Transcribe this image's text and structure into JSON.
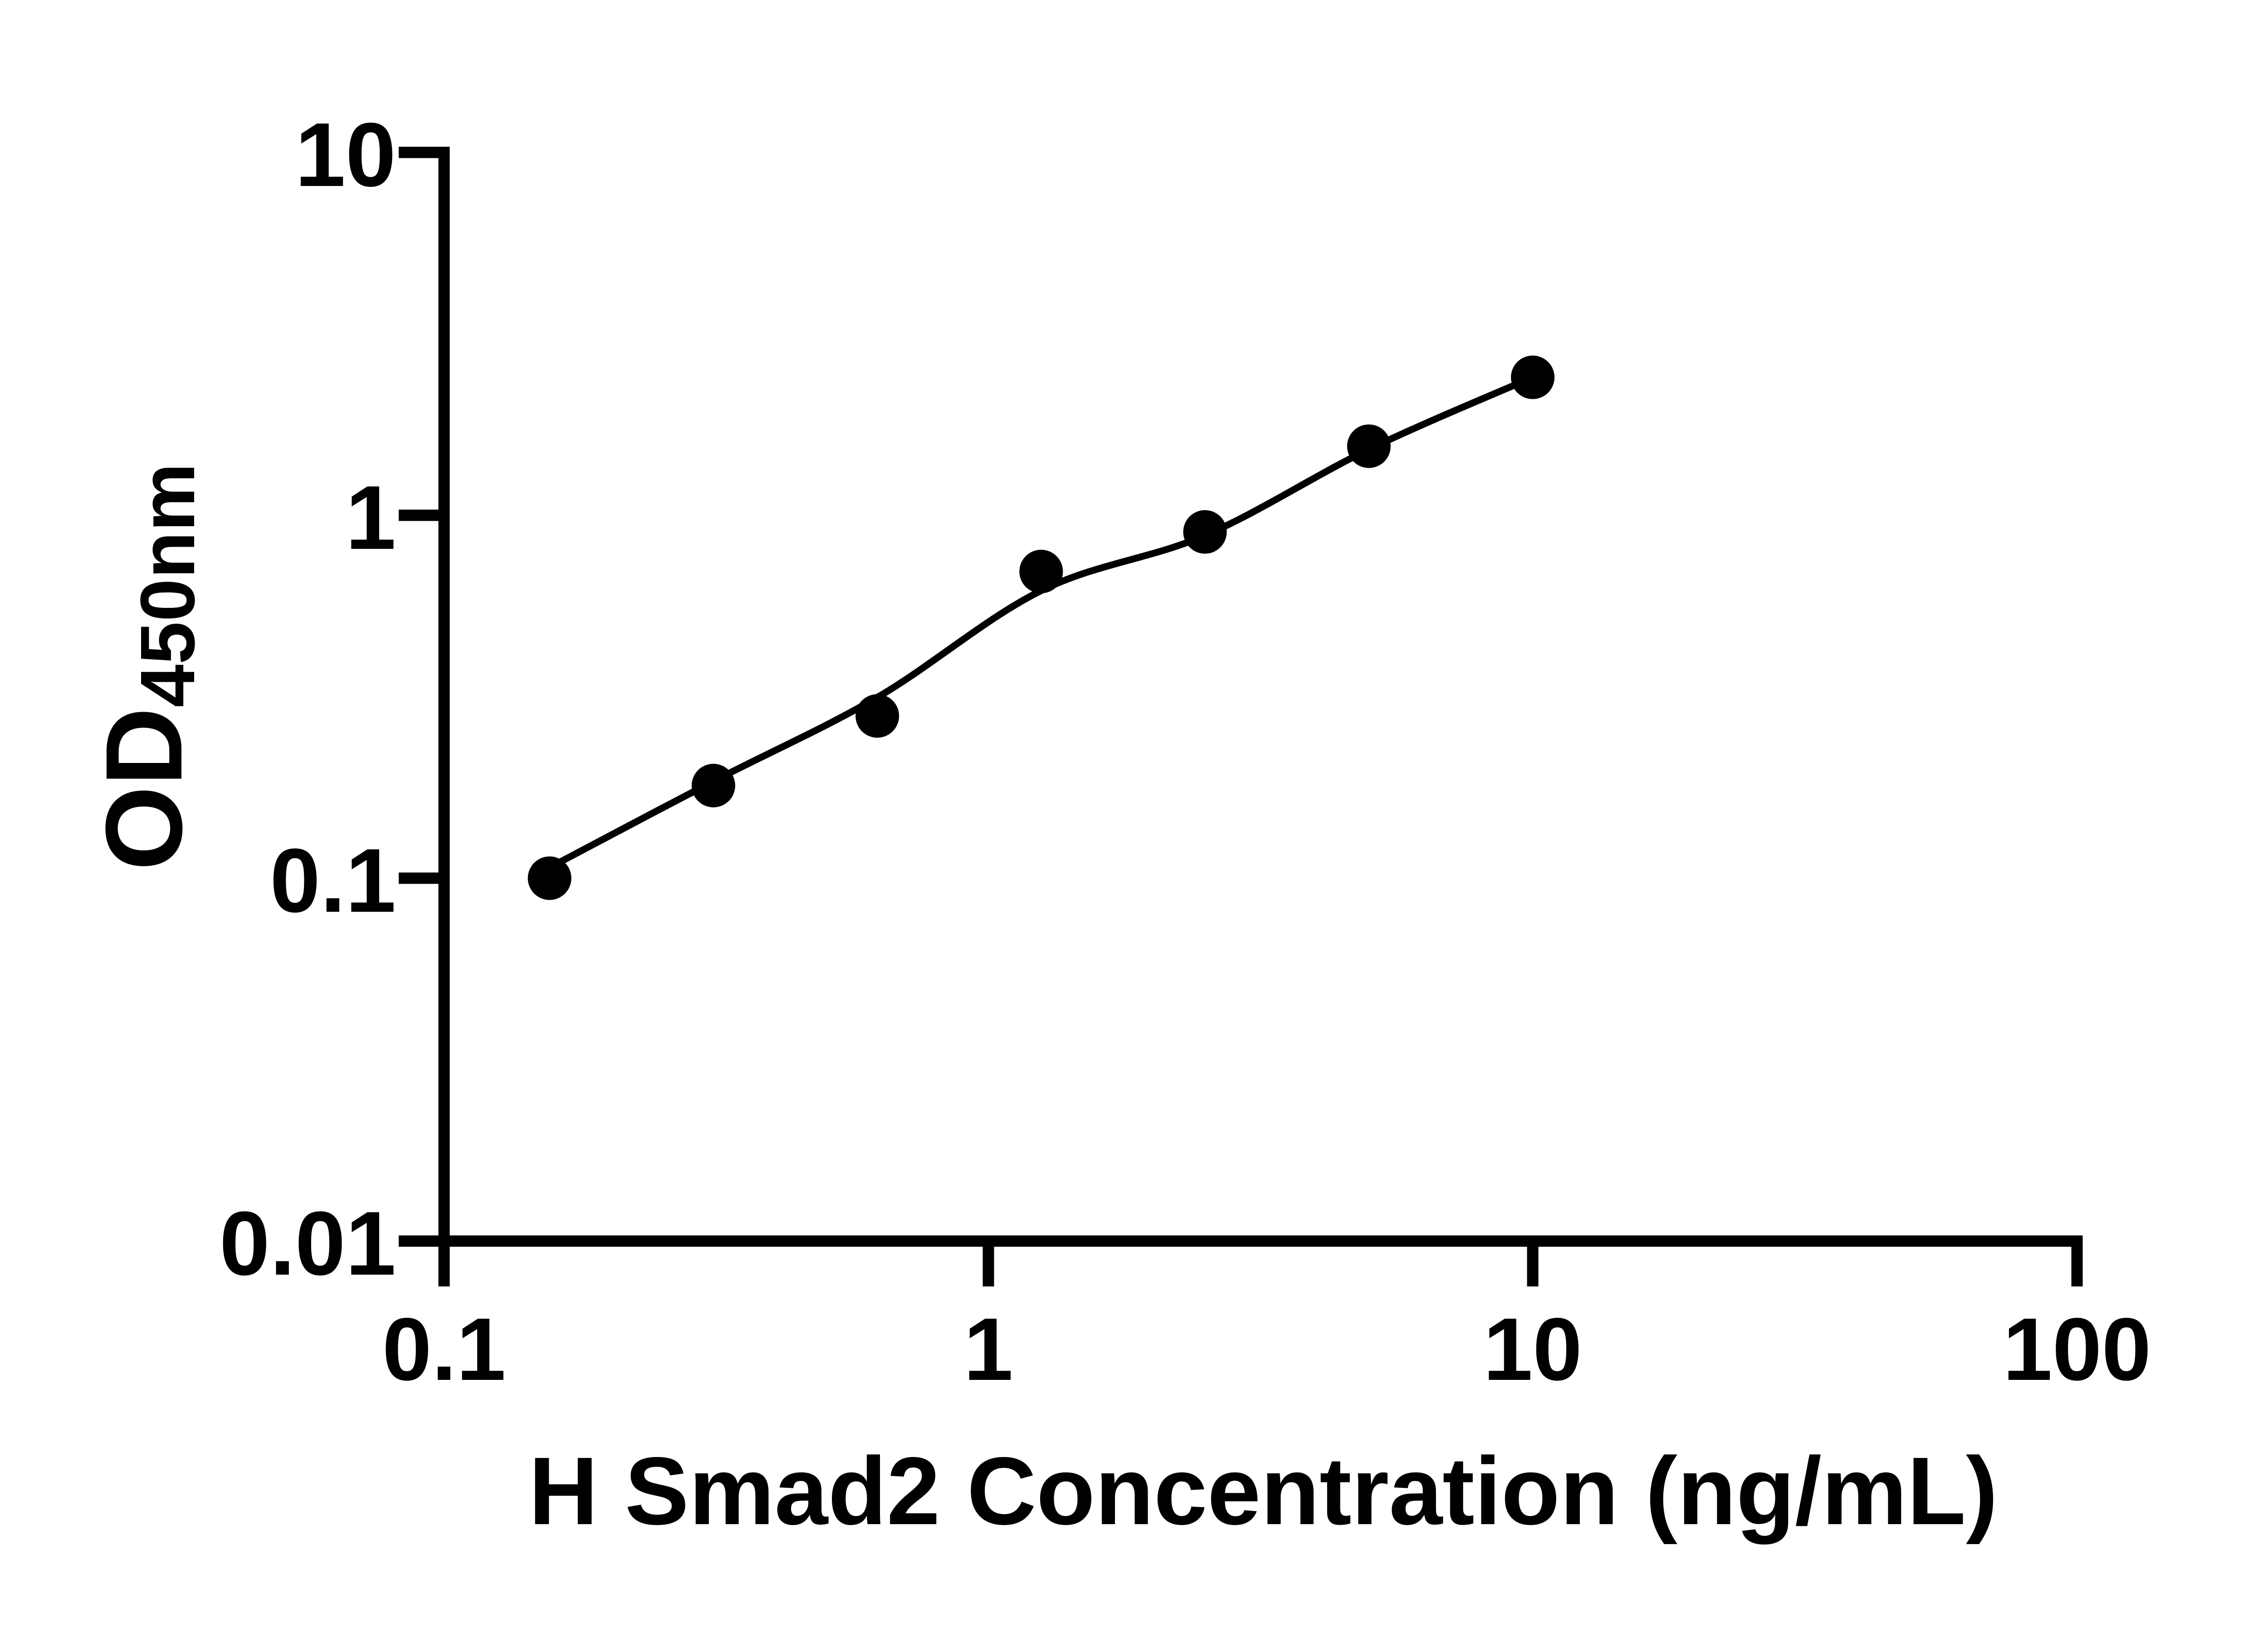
{
  "figure": {
    "background_color": "#ffffff",
    "ink_color": "#000000"
  },
  "chart_data": {
    "type": "scatter",
    "title": "",
    "xlabel": "H Smad2 Concentration (ng/mL)",
    "ylabel": {
      "main": "OD",
      "sub": "450nm"
    },
    "x_scale": "log",
    "y_scale": "log",
    "xlim": [
      0.1,
      100
    ],
    "ylim": [
      0.01,
      10
    ],
    "grid": false,
    "legend_position": "none",
    "x_ticks": [
      {
        "value": 0.1,
        "label": "0.1"
      },
      {
        "value": 1,
        "label": "1"
      },
      {
        "value": 10,
        "label": "10"
      },
      {
        "value": 100,
        "label": "100"
      }
    ],
    "y_ticks": [
      {
        "value": 10,
        "label": "10"
      },
      {
        "value": 1,
        "label": "1"
      },
      {
        "value": 0.1,
        "label": "0.1"
      },
      {
        "value": 0.01,
        "label": "0.01"
      }
    ],
    "series": [
      {
        "name": "standard-points",
        "type": "scatter",
        "marker": "filled-circle",
        "color": "#000000",
        "points": [
          {
            "x": 0.15625,
            "y": 0.1
          },
          {
            "x": 0.3125,
            "y": 0.18
          },
          {
            "x": 0.625,
            "y": 0.28
          },
          {
            "x": 1.25,
            "y": 0.7
          },
          {
            "x": 2.5,
            "y": 0.9
          },
          {
            "x": 5,
            "y": 1.55
          },
          {
            "x": 10,
            "y": 2.4
          }
        ]
      },
      {
        "name": "fit-curve",
        "type": "line",
        "color": "#000000",
        "points": [
          {
            "x": 0.15625,
            "y": 0.107
          },
          {
            "x": 0.3125,
            "y": 0.185
          },
          {
            "x": 0.625,
            "y": 0.315
          },
          {
            "x": 1.25,
            "y": 0.62
          },
          {
            "x": 2.5,
            "y": 0.88
          },
          {
            "x": 5,
            "y": 1.52
          },
          {
            "x": 10,
            "y": 2.4
          }
        ]
      }
    ]
  }
}
